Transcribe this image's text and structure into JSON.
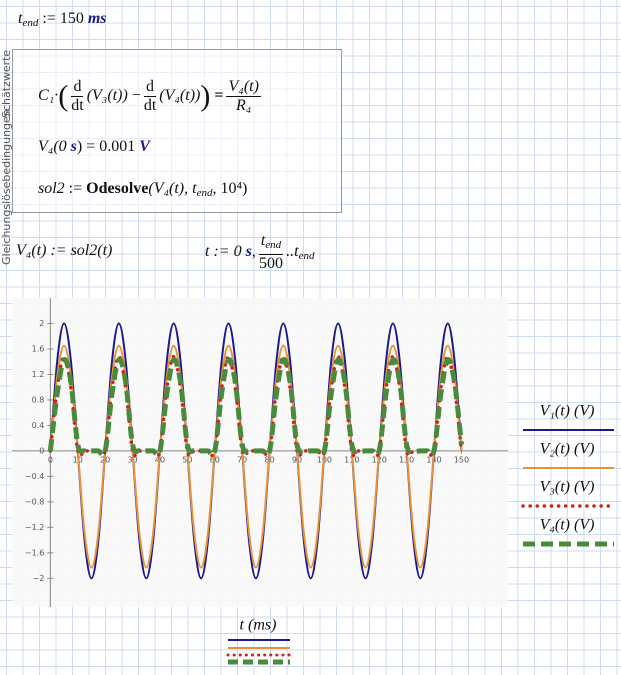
{
  "worksheet": {
    "tend_def": {
      "name": "t",
      "sub": "end",
      "op": ":=",
      "value": 150,
      "unit": "ms"
    },
    "solve_block": {
      "side_labels": [
        "Gleichungslösebedingungen",
        "Schätzwerte"
      ],
      "ode": {
        "coef": "C₁·",
        "d": "d",
        "dt": "dt",
        "arg1": "(V₃(t))",
        "minus": "−",
        "arg2": "(V₄(t))",
        "eq": "=",
        "num": "V₄(t)",
        "den": "R₄"
      },
      "init": {
        "lhs": "V₄(0",
        "unit1": "s",
        "mid": ") = 0.001",
        "unit2": "V"
      },
      "odesolve": {
        "lhs": "sol2",
        "op": ":=",
        "fn": "Odesolve",
        "args": "(V₄(t), t",
        "sub": "end",
        "tail": ", 10⁴)"
      }
    },
    "v4_def": "V₄(t) := sol2(t)",
    "range_def": {
      "lhs": "t := 0",
      "unit": "s",
      "comma": ",",
      "num": "t",
      "num_sub": "end",
      "den": "500",
      "dots": "..t",
      "end_sub": "end"
    }
  },
  "chart_data": {
    "type": "line",
    "x_label": "t (ms)",
    "x": [
      0,
      2.5,
      5,
      7.5,
      10,
      12.5,
      15,
      17.5,
      20,
      22.5,
      25,
      27.5,
      30,
      32.5,
      35,
      37.5,
      40,
      42.5,
      45,
      47.5,
      50,
      52.5,
      55,
      57.5,
      60,
      62.5,
      65,
      67.5,
      70,
      72.5,
      75,
      77.5,
      80,
      82.5,
      85,
      87.5,
      90,
      92.5,
      95,
      97.5,
      100,
      102.5,
      105,
      107.5,
      110,
      112.5,
      115,
      117.5,
      120,
      122.5,
      125,
      127.5,
      130,
      132.5,
      135,
      137.5,
      140,
      142.5,
      145,
      147.5,
      150
    ],
    "series": [
      {
        "name": "V₁(t) (V)",
        "color": "#1a1a8c",
        "style": "solid",
        "values": [
          0,
          1.41,
          2,
          1.41,
          0,
          -1.41,
          -2,
          -1.41,
          0,
          1.41,
          2,
          1.41,
          0,
          -1.41,
          -2,
          -1.41,
          0,
          1.41,
          2,
          1.41,
          0,
          -1.41,
          -2,
          -1.41,
          0,
          1.41,
          2,
          1.41,
          0,
          -1.41,
          -2,
          -1.41,
          0,
          1.41,
          2,
          1.41,
          0,
          -1.41,
          -2,
          -1.41,
          0,
          1.41,
          2,
          1.41,
          0,
          -1.41,
          -2,
          -1.41,
          0,
          1.41,
          2,
          1.41,
          0,
          -1.41,
          -2,
          -1.41,
          0,
          1.41,
          2,
          1.41,
          0
        ]
      },
      {
        "name": "V₂(t) (V)",
        "color": "#e8923a",
        "style": "solid",
        "values": [
          0,
          1.17,
          1.65,
          1.17,
          0,
          -1.29,
          -1.83,
          -1.29,
          0,
          1.17,
          1.65,
          1.17,
          0,
          -1.29,
          -1.83,
          -1.29,
          0,
          1.17,
          1.65,
          1.17,
          0,
          -1.29,
          -1.83,
          -1.29,
          0,
          1.17,
          1.65,
          1.17,
          0,
          -1.29,
          -1.83,
          -1.29,
          0,
          1.17,
          1.65,
          1.17,
          0,
          -1.29,
          -1.83,
          -1.29,
          0,
          1.17,
          1.65,
          1.17,
          0,
          -1.29,
          -1.83,
          -1.29,
          0,
          1.17,
          1.65,
          1.17,
          0,
          -1.29,
          -1.83,
          -1.29,
          0,
          1.17,
          1.65,
          1.17,
          0
        ]
      },
      {
        "name": "V₃(t) (V)",
        "color": "#d42020",
        "style": "dotted",
        "values": [
          0,
          0.98,
          1.48,
          0.98,
          0,
          0,
          0,
          0,
          0,
          0.98,
          1.48,
          0.98,
          0,
          0,
          0,
          0,
          0,
          0.98,
          1.48,
          0.98,
          0,
          0,
          0,
          0,
          0,
          0.98,
          1.48,
          0.98,
          0,
          0,
          0,
          0,
          0,
          0.98,
          1.48,
          0.98,
          0,
          0,
          0,
          0,
          0,
          0.98,
          1.48,
          0.98,
          0,
          0,
          0,
          0,
          0,
          0.98,
          1.48,
          0.98,
          0,
          0,
          0,
          0,
          0,
          0.98,
          1.48,
          0.98,
          0
        ]
      },
      {
        "name": "V₄(t) (V)",
        "color": "#4a8a3c",
        "style": "dashed",
        "values": [
          0,
          0.9,
          1.43,
          1.08,
          0.1,
          0,
          0,
          0,
          0,
          0.9,
          1.43,
          1.08,
          0.1,
          0,
          0,
          0,
          0,
          0.9,
          1.43,
          1.08,
          0.1,
          0,
          0,
          0,
          0,
          0.9,
          1.43,
          1.08,
          0.1,
          0,
          0,
          0,
          0,
          0.9,
          1.43,
          1.08,
          0.1,
          0,
          0,
          0,
          0,
          0.9,
          1.43,
          1.08,
          0.1,
          0,
          0,
          0,
          0,
          0.9,
          1.43,
          1.08,
          0.1,
          0,
          0,
          0,
          0,
          0.9,
          1.43,
          1.08,
          0.1
        ]
      }
    ],
    "xlim": [
      -14,
      167
    ],
    "ylim": [
      -2.45,
      2.4
    ],
    "xticks": [
      0,
      10,
      20,
      30,
      40,
      50,
      60,
      70,
      80,
      90,
      100,
      110,
      120,
      130,
      140,
      150
    ],
    "yticks": [
      {
        "value": -2,
        "label": "−2"
      },
      {
        "value": -1.6,
        "label": "−1.6"
      },
      {
        "value": -1.2,
        "label": "−1.2"
      },
      {
        "value": -0.8,
        "label": "−0.8"
      },
      {
        "value": -0.4,
        "label": "−0.4"
      },
      0,
      0.4,
      0.8,
      1.2,
      1.6,
      2
    ]
  }
}
